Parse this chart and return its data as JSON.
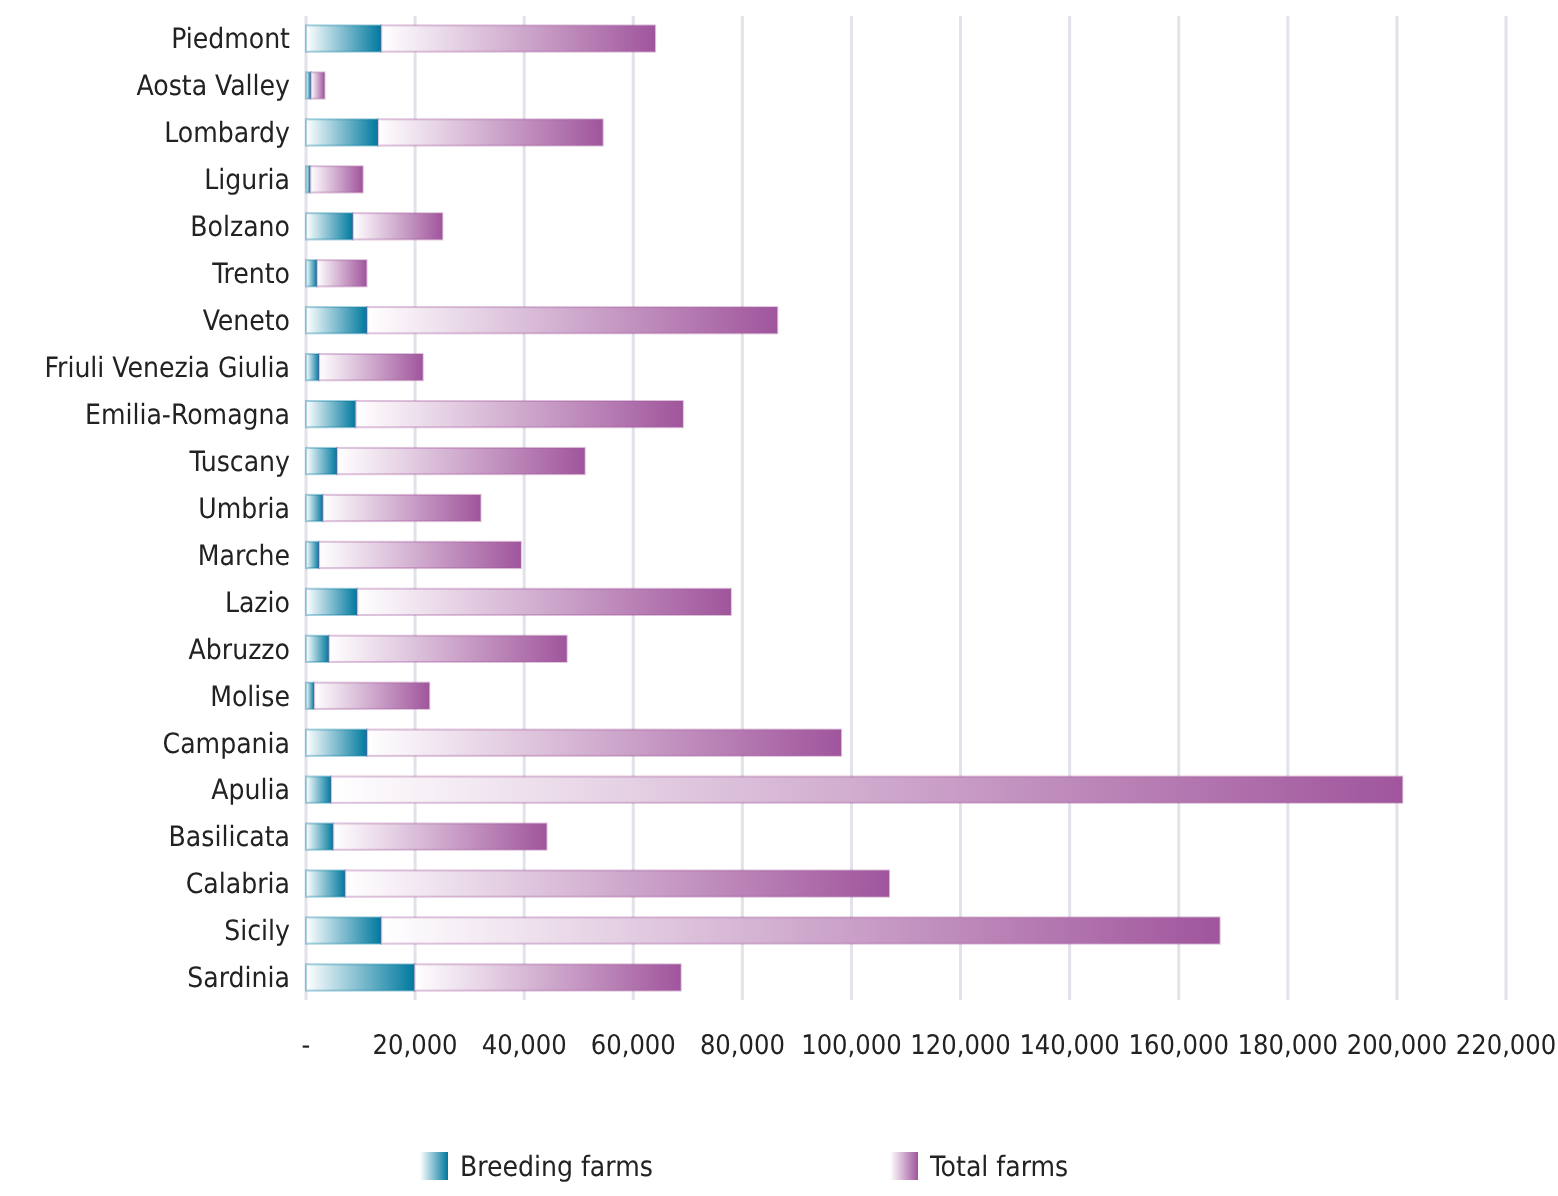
{
  "chart_data": {
    "type": "bar",
    "orientation": "horizontal",
    "stacked": true,
    "categories": [
      "Piedmont",
      "Aosta Valley",
      "Lombardy",
      "Liguria",
      "Bolzano",
      "Trento",
      "Veneto",
      "Friuli Venezia Giulia",
      "Emilia-Romagna",
      "Tuscany",
      "Umbria",
      "Marche",
      "Lazio",
      "Abruzzo",
      "Molise",
      "Campania",
      "Apulia",
      "Basilicata",
      "Calabria",
      "Sicily",
      "Sardinia"
    ],
    "series": [
      {
        "name": "Breeding farms",
        "color": "#00799e",
        "values": [
          13800,
          900,
          13200,
          800,
          8600,
          2000,
          11200,
          2400,
          9100,
          5700,
          3100,
          2400,
          9400,
          4200,
          1500,
          11200,
          4600,
          5000,
          7200,
          13800,
          19900
        ]
      },
      {
        "name": "Total farms",
        "color": "#a0559c",
        "values": [
          50200,
          2500,
          41200,
          9600,
          16400,
          9100,
          75200,
          19000,
          60000,
          45400,
          28900,
          37000,
          68500,
          43600,
          21100,
          86900,
          196400,
          39100,
          99700,
          153700,
          48800
        ]
      }
    ],
    "xlim": [
      0,
      220000
    ],
    "xticks": [
      {
        "value": 0,
        "label": "-"
      },
      {
        "value": 20000,
        "label": "20,000"
      },
      {
        "value": 40000,
        "label": "40,000"
      },
      {
        "value": 60000,
        "label": "60,000"
      },
      {
        "value": 80000,
        "label": "80,000"
      },
      {
        "value": 100000,
        "label": "100,000"
      },
      {
        "value": 120000,
        "label": "120,000"
      },
      {
        "value": 140000,
        "label": "140,000"
      },
      {
        "value": 160000,
        "label": "160,000"
      },
      {
        "value": 180000,
        "label": "180,000"
      },
      {
        "value": 200000,
        "label": "200,000"
      },
      {
        "value": 220000,
        "label": "220,000"
      }
    ],
    "grid": "x",
    "legend": "bottom"
  }
}
